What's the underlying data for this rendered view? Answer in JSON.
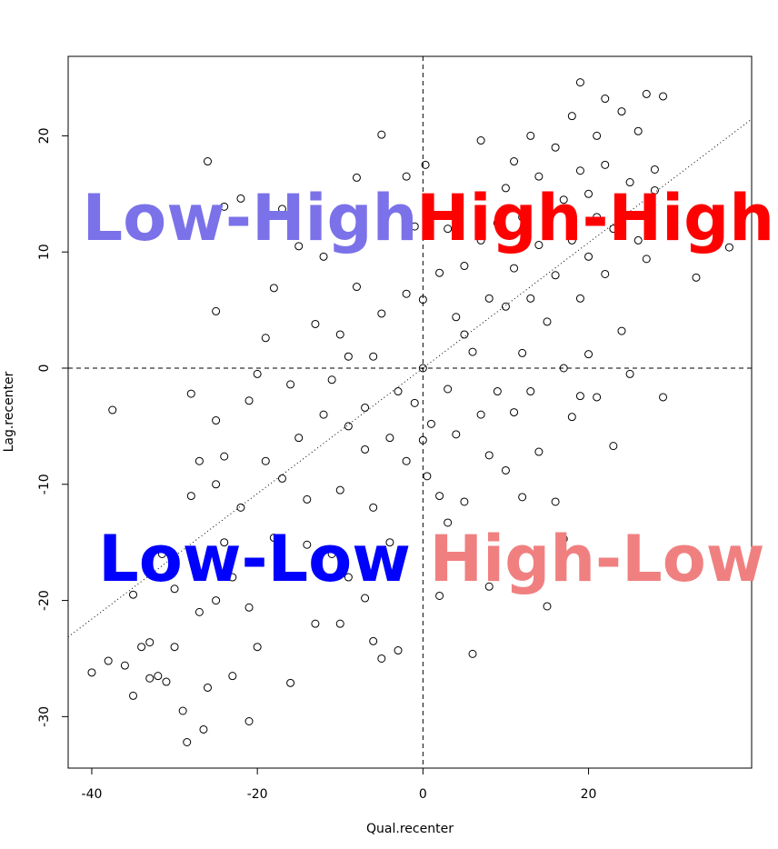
{
  "chart_data": {
    "type": "scatter",
    "xlabel": "Qual.recenter",
    "ylabel": "Lag.recenter",
    "xlim": [
      -42.85,
      39.7
    ],
    "ylim": [
      -34.43,
      26.84
    ],
    "xticks": [
      -40,
      -20,
      0,
      20
    ],
    "yticks": [
      -30,
      -20,
      -10,
      0,
      10,
      20
    ],
    "hline": 0,
    "vline": 0,
    "regression": {
      "slope": 0.54,
      "intercept": 0
    },
    "color": "#000000",
    "annotations": [
      {
        "text": "Low-High",
        "color": "#7b72e9"
      },
      {
        "text": "High-High",
        "color": "#ff0000"
      },
      {
        "text": "Low-Low",
        "color": "#0000ff"
      },
      {
        "text": "High-Low",
        "color": "#f08080"
      }
    ],
    "x": [
      -40,
      -38,
      -37.5,
      -36,
      -35,
      -35,
      -34,
      -33,
      -33,
      -32,
      -31,
      -31.5,
      -30,
      -30,
      -29,
      -28.5,
      -28,
      -28,
      -27,
      -27,
      -26.5,
      -26,
      -26,
      -25,
      -25,
      -25,
      -25,
      -24,
      -24,
      -24,
      -23,
      -23,
      -22,
      -22,
      -21,
      -21,
      -21,
      -20,
      -20,
      -19,
      -19,
      -18,
      -18,
      -17,
      -17,
      -16,
      -16,
      -15,
      -15,
      -14,
      -14,
      -13,
      -13,
      -12,
      -12,
      -11,
      -11,
      -10,
      -10,
      -10,
      -9,
      -9,
      -9,
      -8,
      -8,
      -7,
      -7,
      -7,
      -6,
      -6,
      -6,
      -5,
      -5,
      -5,
      -4,
      -4,
      -3,
      -3,
      -2,
      -2,
      -2,
      -1,
      -1,
      0,
      0,
      0,
      0.3,
      0.5,
      1,
      2,
      2,
      2,
      3,
      3,
      3,
      4,
      4,
      5,
      5,
      5,
      6,
      6,
      6,
      7,
      7,
      7,
      8,
      8,
      8,
      9,
      9,
      10,
      10,
      10,
      11,
      11,
      11,
      12,
      12,
      12,
      13,
      13,
      13,
      14,
      14,
      14,
      15,
      15,
      15,
      16,
      16,
      16,
      17,
      17,
      17,
      18,
      18,
      18,
      19,
      19,
      19,
      19,
      20,
      20,
      20,
      21,
      21,
      21,
      22,
      22,
      22,
      23,
      23,
      24,
      24,
      25,
      25,
      26,
      26,
      27,
      27,
      28,
      28,
      29,
      29,
      33,
      37
    ],
    "y": [
      -26.2,
      -25.2,
      -3.6,
      -25.6,
      -28.2,
      -19.5,
      -24,
      -23.6,
      -26.7,
      -26.5,
      -27,
      -16,
      -19,
      -24,
      -29.5,
      -32.2,
      -11,
      -2.2,
      -8,
      -21,
      -31.1,
      -27.5,
      17.8,
      -4.5,
      -10,
      -20,
      4.9,
      13.9,
      -7.6,
      -15,
      -18,
      -26.5,
      14.6,
      -12,
      -30.4,
      -2.8,
      -20.6,
      -0.5,
      -24,
      -8,
      2.6,
      6.9,
      -14.6,
      13.7,
      -9.5,
      -27.1,
      -1.4,
      -6,
      10.5,
      -11.3,
      -15.2,
      3.8,
      -22,
      9.6,
      -4,
      -1,
      -16,
      -10.5,
      2.9,
      -22,
      1,
      -5,
      -18,
      16.4,
      7,
      -7,
      -3.4,
      -19.8,
      1,
      -12,
      -23.5,
      20.1,
      4.7,
      -25,
      -6,
      -15,
      -24.3,
      -2,
      16.5,
      6.4,
      -8,
      -3,
      12.2,
      0,
      -6.2,
      5.9,
      17.5,
      -9.3,
      -4.8,
      8.2,
      -11,
      -19.6,
      -1.8,
      -13.3,
      12,
      4.4,
      -5.7,
      2.9,
      -11.5,
      8.8,
      -24.6,
      -15,
      1.4,
      19.6,
      -4,
      11,
      -18.8,
      -7.5,
      6,
      12.5,
      -2,
      -8.8,
      5.3,
      15.5,
      -3.8,
      8.6,
      17.8,
      -11.1,
      1.3,
      13,
      20,
      6,
      -2,
      -7.2,
      10.6,
      16.5,
      -20.5,
      4,
      13.2,
      -11.5,
      19,
      8,
      -14.7,
      0,
      14.5,
      -4.2,
      21.7,
      11,
      24.6,
      17,
      -2.4,
      6,
      15,
      9.6,
      1.2,
      13,
      20,
      -2.5,
      17.5,
      23.2,
      8.1,
      -6.7,
      12,
      3.2,
      22.1,
      16,
      -0.5,
      20.4,
      11,
      23.6,
      9.4,
      17.1,
      15.3,
      23.4,
      -2.5,
      7.8,
      10.4
    ]
  }
}
